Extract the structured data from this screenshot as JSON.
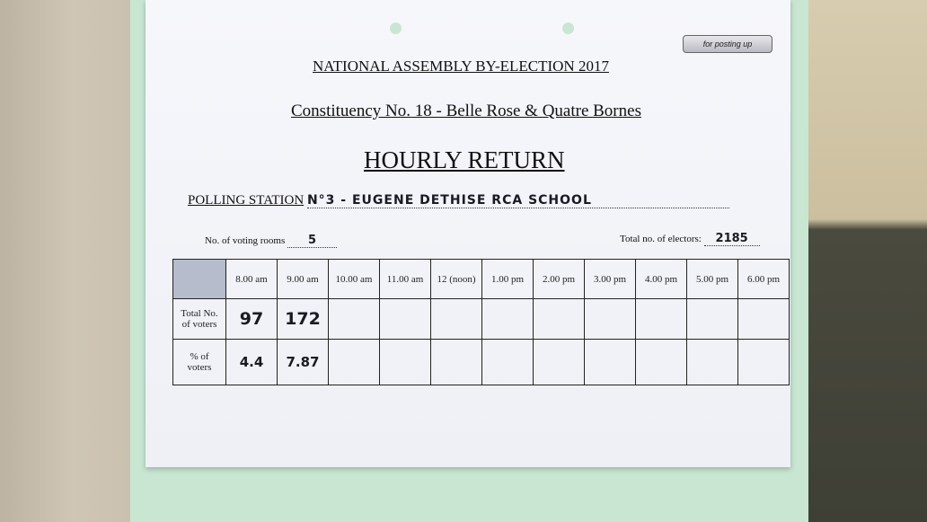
{
  "document": {
    "tag": "for posting up",
    "heading": "NATIONAL ASSEMBLY BY-ELECTION 2017",
    "constituency": "Constituency No. 18 - Belle Rose & Quatre Bornes",
    "title": "HOURLY RETURN",
    "polling_station_label": "POLLING STATION",
    "polling_station_value": "N°3 - EUGENE DETHISE RCA SCHOOL",
    "voting_rooms_label": "No. of voting rooms",
    "voting_rooms_value": "5",
    "electors_label": "Total no. of electors:",
    "electors_value": "2185"
  },
  "table": {
    "columns": [
      "8.00 am",
      "9.00 am",
      "10.00 am",
      "11.00 am",
      "12 (noon)",
      "1.00 pm",
      "2.00 pm",
      "3.00 pm",
      "4.00 pm",
      "5.00 pm",
      "6.00 pm"
    ],
    "rows": [
      {
        "label": "Total No. of voters",
        "values": [
          "97",
          "172",
          "",
          "",
          "",
          "",
          "",
          "",
          "",
          "",
          ""
        ]
      },
      {
        "label": "% of voters",
        "values": [
          "4.4",
          "7.87",
          "",
          "",
          "",
          "",
          "",
          "",
          "",
          "",
          ""
        ]
      }
    ]
  }
}
